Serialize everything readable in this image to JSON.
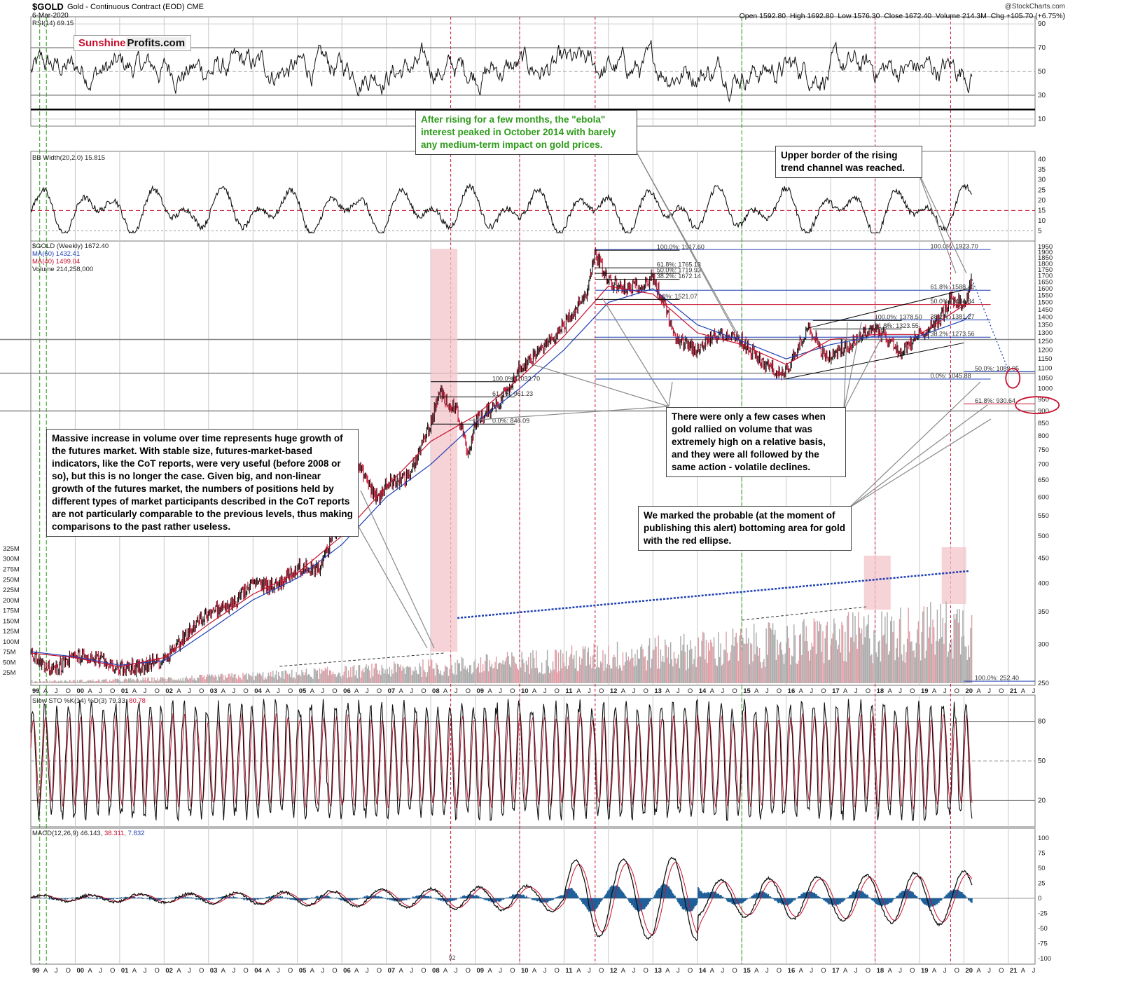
{
  "header": {
    "symbol": "$GOLD",
    "description": "Gold - Continuous Contract (EOD)",
    "exchange": "CME",
    "date": "6-Mar-2020",
    "credit": "@StockCharts.com",
    "quote": {
      "open_label": "Open",
      "open": "1592.80",
      "high_label": "High",
      "high": "1692.80",
      "low_label": "Low",
      "low": "1576.30",
      "close_label": "Close",
      "close": "1672.40",
      "volume_label": "Volume",
      "volume": "214.3M",
      "chg_label": "Chg",
      "chg": "+105.70 (+6.75%)"
    }
  },
  "logo": {
    "part1": "Sunshine",
    "part2": "Profits.com"
  },
  "panels": {
    "rsi": {
      "label": "RSI(14) 69.15",
      "ticks": [
        "90",
        "70",
        "50",
        "30",
        "10"
      ]
    },
    "bbw": {
      "label": "BB Width(20,2.0) 15.815",
      "ticks": [
        "40",
        "35",
        "30",
        "25",
        "20",
        "15",
        "10",
        "5"
      ]
    },
    "price": {
      "label": "$GOLD (Weekly) 1672.40",
      "ma60": "MA(60) 1432.41",
      "ma40": "MA(40) 1499.04",
      "volume": "Volume 214,258,000",
      "ticks": [
        "1950",
        "1900",
        "1850",
        "1800",
        "1750",
        "1700",
        "1650",
        "1600",
        "1550",
        "1500",
        "1450",
        "1400",
        "1350",
        "1300",
        "1250",
        "1200",
        "1150",
        "1100",
        "1050",
        "1000",
        "950",
        "900",
        "850",
        "800",
        "750",
        "700",
        "650",
        "600",
        "550",
        "500",
        "450",
        "400",
        "350",
        "300",
        "250"
      ],
      "volume_ticks": [
        "325M",
        "300M",
        "275M",
        "250M",
        "225M",
        "200M",
        "175M",
        "150M",
        "125M",
        "100M",
        "75M",
        "50M",
        "25M"
      ]
    },
    "sto": {
      "label": "Slow STO %K(14) %D(3) 79.33,",
      "d_value": "80.78",
      "ticks": [
        "80",
        "50",
        "20"
      ]
    },
    "macd": {
      "label": "MACD(12,26,9) 46.143,",
      "signal": "38.311,",
      "hist": "7.832",
      "ticks": [
        "100",
        "75",
        "50",
        "25",
        "0",
        "-25",
        "-50",
        "-75",
        "-100"
      ]
    }
  },
  "fib_labels": [
    "100.0%: 1917.60",
    "61.8%: 1765.13",
    "50.0%: 1719.93",
    "38.2%: 1672.14",
    "0.0%: 1521.07",
    "100.0%: 1923.70",
    "61.8%: 1588.41",
    "50.0%: 1484.84",
    "38.2%: 1381.27",
    "38.2%: 1273.56",
    "50.0%: 1083.05",
    "0.0%: 1045.88",
    "61.8%: 930.64",
    "100.0%: 252.40",
    "100.0%: 1032.70",
    "61.8%: 961.23",
    "0.0%: 846.09",
    "100.0%: 1378.50",
    "61.8%: 1323.55"
  ],
  "x_axis": {
    "labels_top": [
      "99",
      "A",
      "J",
      "O",
      "00",
      "A",
      "J",
      "O",
      "01",
      "A",
      "J",
      "O",
      "02",
      "A",
      "J",
      "O",
      "03",
      "A",
      "J",
      "O",
      "04",
      "A",
      "J",
      "O",
      "05",
      "A",
      "J",
      "O",
      "06",
      "A",
      "J",
      "O",
      "07",
      "A",
      "J",
      "O",
      "08",
      "A",
      "J",
      "O",
      "09",
      "A",
      "J",
      "O",
      "10",
      "A",
      "J",
      "O",
      "11",
      "A",
      "J",
      "O",
      "12",
      "A",
      "J",
      "O",
      "13",
      "A",
      "J",
      "O",
      "14",
      "A",
      "J",
      "O",
      "15",
      "A",
      "J",
      "O",
      "16",
      "A",
      "J",
      "O",
      "17",
      "A",
      "J",
      "O",
      "18",
      "A",
      "J",
      "O",
      "19",
      "A",
      "J",
      "O",
      "20",
      "A",
      "J",
      "O",
      "21",
      "A",
      "J"
    ],
    "labels_bottom": [
      "99",
      "A",
      "J",
      "O",
      "00",
      "A",
      "J",
      "O",
      "01",
      "A",
      "J",
      "O",
      "02",
      "A",
      "J",
      "O",
      "03",
      "A",
      "J",
      "O",
      "04",
      "A",
      "J",
      "O",
      "05",
      "A",
      "J",
      "O",
      "06",
      "A",
      "J",
      "O",
      "07",
      "A",
      "J",
      "O",
      "08",
      "A",
      "J",
      "O",
      "09",
      "A",
      "J",
      "O",
      "10",
      "A",
      "J",
      "O",
      "11",
      "A",
      "J",
      "O",
      "12",
      "A",
      "J",
      "O",
      "13",
      "A",
      "J",
      "O",
      "14",
      "A",
      "J",
      "O",
      "15",
      "A",
      "J",
      "O",
      "16",
      "A",
      "J",
      "O",
      "17",
      "A",
      "J",
      "O",
      "18",
      "A",
      "J",
      "O",
      "19",
      "A",
      "J",
      "O",
      "20",
      "A",
      "J",
      "O",
      "21",
      "A",
      "J"
    ],
    "marker": "92"
  },
  "annotations": {
    "ebola": "After rising for a few months, the \"ebola\" interest peaked in October 2014 with barely any medium-term impact on gold prices.",
    "upper_border": "Upper border of the rising trend channel was reached.",
    "volume_growth": "Massive increase in volume over time represents huge growth of the futures market. With stable size, futures-market-based indicators, like the CoT reports, were very useful (before 2008 or so), but this is no longer the case. Given big, and non-linear growth of the futures market, the numbers of positions held by different types of market participants described in the CoT reports are not particularly comparable to the previous levels, thus making comparisons to the past rather useless.",
    "few_cases": "There were only a few cases when gold rallied on volume that was extremely high on a relative basis, and they were all followed by the same action - volatile declines.",
    "bottoming": "We marked the probable (at the moment of publishing this alert) bottoming area for gold with the red ellipse."
  },
  "colors": {
    "up": "#111111",
    "down": "#c8102e",
    "ma60": "#1f3fb5",
    "ma40": "#c8102e",
    "volume": "#a9a9a9",
    "highlight": "#f2c4ca",
    "macd_hist": "#1f5f99",
    "accent_green": "#2d9b1a"
  },
  "chart_data": {
    "type": "line",
    "title": "$GOLD Gold - Continuous Contract (EOD) CME",
    "x_range": [
      "1999",
      "2021"
    ],
    "ylim": [
      250,
      1950
    ],
    "y_scale": "log",
    "series": [
      {
        "name": "$GOLD (Weekly)",
        "x": [
          1999.0,
          1999.5,
          2000.0,
          2000.5,
          2001.0,
          2001.5,
          2002.0,
          2002.5,
          2003.0,
          2003.5,
          2004.0,
          2004.5,
          2005.0,
          2005.5,
          2006.0,
          2006.4,
          2006.8,
          2007.0,
          2007.5,
          2008.0,
          2008.2,
          2008.6,
          2008.85,
          2009.0,
          2009.5,
          2010.0,
          2010.5,
          2011.0,
          2011.5,
          2011.7,
          2012.0,
          2012.5,
          2013.0,
          2013.3,
          2013.5,
          2014.0,
          2014.5,
          2015.0,
          2015.5,
          2015.95,
          2016.5,
          2016.9,
          2017.5,
          2018.0,
          2018.6,
          2019.0,
          2019.5,
          2019.7,
          2020.0,
          2020.18
        ],
        "values": [
          287,
          265,
          285,
          280,
          268,
          270,
          280,
          315,
          350,
          360,
          400,
          395,
          430,
          430,
          550,
          700,
          590,
          640,
          660,
          850,
          980,
          900,
          720,
          860,
          930,
          1100,
          1200,
          1350,
          1550,
          1900,
          1650,
          1600,
          1680,
          1450,
          1250,
          1200,
          1300,
          1250,
          1120,
          1060,
          1350,
          1150,
          1250,
          1340,
          1180,
          1290,
          1400,
          1530,
          1480,
          1672
        ]
      },
      {
        "name": "MA(60)",
        "x": [
          1999.0,
          2000.0,
          2001.0,
          2002.0,
          2003.0,
          2004.0,
          2005.0,
          2006.0,
          2007.0,
          2008.0,
          2009.0,
          2010.0,
          2011.0,
          2012.0,
          2013.0,
          2014.0,
          2015.0,
          2016.0,
          2017.0,
          2018.0,
          2019.0,
          2020.0,
          2020.18
        ],
        "values": [
          290,
          283,
          272,
          278,
          320,
          370,
          410,
          480,
          600,
          700,
          850,
          1000,
          1200,
          1500,
          1600,
          1350,
          1250,
          1150,
          1230,
          1280,
          1280,
          1380,
          1432
        ]
      },
      {
        "name": "MA(40)",
        "x": [
          1999.0,
          2000.0,
          2001.0,
          2002.0,
          2003.0,
          2004.0,
          2005.0,
          2006.0,
          2007.0,
          2008.0,
          2009.0,
          2010.0,
          2011.0,
          2012.0,
          2013.0,
          2014.0,
          2015.0,
          2016.0,
          2017.0,
          2018.0,
          2019.0,
          2020.0,
          2020.18
        ],
        "values": [
          288,
          282,
          270,
          282,
          330,
          380,
          420,
          500,
          630,
          780,
          880,
          1050,
          1280,
          1620,
          1560,
          1300,
          1230,
          1120,
          1260,
          1290,
          1290,
          1480,
          1499
        ]
      }
    ],
    "indicator_values": {
      "RSI(14)": 69.15,
      "BB Width(20,2.0)": 15.815,
      "MA(60)": 1432.41,
      "MA(40)": 1499.04,
      "Volume": 214258000,
      "Slow STO %K": 79.33,
      "Slow STO %D": 80.78,
      "MACD": 46.143,
      "MACD Signal": 38.311,
      "MACD Histogram": 7.832
    }
  }
}
